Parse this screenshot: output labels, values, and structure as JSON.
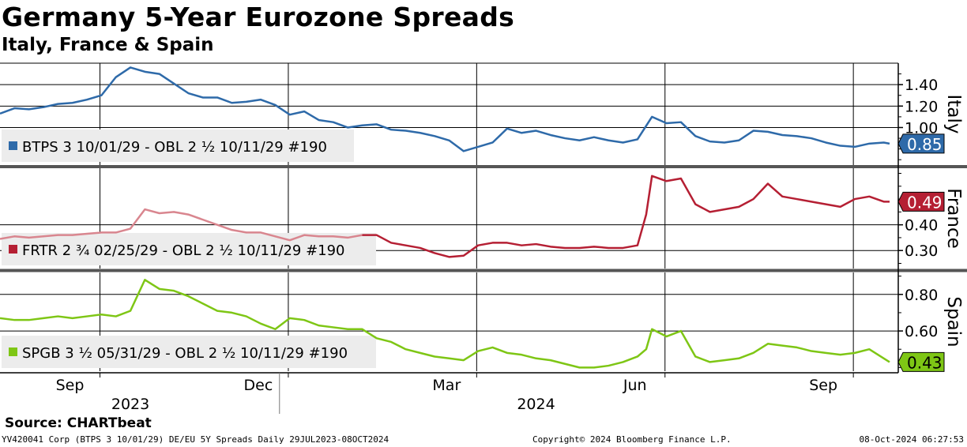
{
  "title": "Germany 5-Year Eurozone Spreads",
  "subtitle": "Italy, France & Spain",
  "source": "Source: CHARTbeat",
  "footer": {
    "left": "YV420041 Corp (BTPS 3 10/01/29) DE/EU 5Y Spreads  Daily 29JUL2023-08OCT2024",
    "center": "Copyright© 2024 Bloomberg Finance L.P.",
    "right": "08-Oct-2024 06:27:53"
  },
  "colors": {
    "italy": "#2e6aa9",
    "france": "#b51f33",
    "france_light": "#d9868f",
    "spain": "#7ec615"
  },
  "chart_data": {
    "type": "line",
    "x_ticks": [
      "Sep",
      "Dec",
      "Mar",
      "Jun",
      "Sep"
    ],
    "x_tick_weeks": [
      6,
      19,
      32,
      45,
      58
    ],
    "year_labels": [
      {
        "label": "2023",
        "week": 9
      },
      {
        "label": "2024",
        "week": 37
      }
    ],
    "year_boundary_week": 20,
    "panels": [
      {
        "name": "Italy",
        "legend": "BTPS 3 10/01/29 - OBL 2 ½ 10/11/29 #190",
        "last_value": "0.85",
        "color_key": "italy",
        "ylim": [
          0.65,
          1.6
        ],
        "yticks": [
          "1.40",
          "1.20",
          "1.00"
        ],
        "ytick_values": [
          1.4,
          1.2,
          1.0
        ],
        "x": [
          0,
          1,
          2,
          3,
          4,
          5,
          6,
          7,
          8,
          9,
          10,
          11,
          12,
          13,
          14,
          15,
          16,
          17,
          18,
          19,
          20,
          21,
          22,
          23,
          24,
          25,
          26,
          27,
          28,
          29,
          30,
          31,
          32,
          33,
          34,
          35,
          36,
          37,
          38,
          39,
          40,
          41,
          42,
          43,
          44,
          45,
          46,
          47,
          48,
          49,
          50,
          51,
          52,
          53,
          54,
          55,
          56,
          57,
          58,
          59,
          60,
          61,
          61.4
        ],
        "values": [
          1.13,
          1.18,
          1.17,
          1.19,
          1.22,
          1.23,
          1.26,
          1.3,
          1.47,
          1.56,
          1.52,
          1.5,
          1.41,
          1.32,
          1.28,
          1.28,
          1.23,
          1.24,
          1.26,
          1.21,
          1.12,
          1.15,
          1.07,
          1.05,
          1.0,
          1.02,
          1.03,
          0.98,
          0.97,
          0.95,
          0.92,
          0.88,
          0.78,
          0.82,
          0.86,
          0.99,
          0.95,
          0.97,
          0.93,
          0.9,
          0.88,
          0.91,
          0.88,
          0.86,
          0.89,
          1.1,
          1.04,
          1.05,
          0.92,
          0.87,
          0.86,
          0.88,
          0.97,
          0.96,
          0.93,
          0.92,
          0.9,
          0.86,
          0.83,
          0.82,
          0.85,
          0.86,
          0.85
        ]
      },
      {
        "name": "France",
        "legend": "FRTR 2 ¾ 02/25/29 - OBL 2 ½ 10/11/29 #190",
        "last_value": "0.49",
        "color_key": "france",
        "ylim": [
          0.23,
          0.62
        ],
        "yticks": [
          "0.40",
          "0.30"
        ],
        "ytick_values": [
          0.4,
          0.3
        ],
        "x": [
          0,
          1,
          2,
          3,
          4,
          5,
          6,
          7,
          8,
          9,
          10,
          11,
          12,
          13,
          14,
          15,
          16,
          17,
          18,
          19,
          20,
          21,
          22,
          23,
          24,
          25,
          26,
          27,
          28,
          29,
          30,
          31,
          32,
          33,
          34,
          35,
          36,
          37,
          38,
          39,
          40,
          41,
          42,
          43,
          44,
          44.6,
          45,
          46,
          47,
          48,
          49,
          50,
          51,
          52,
          53,
          54,
          55,
          56,
          57,
          58,
          59,
          60,
          61,
          61.4
        ],
        "values": [
          0.345,
          0.355,
          0.35,
          0.355,
          0.36,
          0.36,
          0.365,
          0.37,
          0.37,
          0.385,
          0.46,
          0.445,
          0.45,
          0.44,
          0.42,
          0.4,
          0.38,
          0.37,
          0.37,
          0.355,
          0.34,
          0.36,
          0.355,
          0.355,
          0.35,
          0.36,
          0.36,
          0.33,
          0.32,
          0.31,
          0.29,
          0.275,
          0.28,
          0.32,
          0.33,
          0.33,
          0.32,
          0.325,
          0.315,
          0.31,
          0.31,
          0.315,
          0.31,
          0.31,
          0.32,
          0.44,
          0.59,
          0.57,
          0.58,
          0.48,
          0.45,
          0.46,
          0.47,
          0.5,
          0.56,
          0.51,
          0.5,
          0.49,
          0.48,
          0.47,
          0.5,
          0.51,
          0.49,
          0.49
        ],
        "light_until_week": 25
      },
      {
        "name": "Spain",
        "legend": "SPGB 3 ½ 05/31/29 - OBL 2 ½ 10/11/29 #190",
        "last_value": "0.43",
        "color_key": "spain",
        "ylim": [
          0.38,
          0.92
        ],
        "yticks": [
          "0.80",
          "0.60"
        ],
        "ytick_values": [
          0.8,
          0.6
        ],
        "x": [
          0,
          1,
          2,
          3,
          4,
          5,
          6,
          7,
          8,
          9,
          10,
          11,
          12,
          13,
          14,
          15,
          16,
          17,
          18,
          19,
          20,
          21,
          22,
          23,
          24,
          25,
          26,
          27,
          28,
          29,
          30,
          31,
          32,
          33,
          34,
          35,
          36,
          37,
          38,
          39,
          40,
          41,
          42,
          43,
          44,
          44.6,
          45,
          46,
          47,
          48,
          49,
          50,
          51,
          52,
          53,
          54,
          55,
          56,
          57,
          58,
          59,
          60,
          61,
          61.4
        ],
        "values": [
          0.67,
          0.66,
          0.66,
          0.67,
          0.68,
          0.67,
          0.68,
          0.69,
          0.68,
          0.71,
          0.88,
          0.83,
          0.82,
          0.79,
          0.75,
          0.71,
          0.7,
          0.68,
          0.64,
          0.61,
          0.67,
          0.66,
          0.63,
          0.62,
          0.61,
          0.61,
          0.56,
          0.54,
          0.5,
          0.48,
          0.46,
          0.45,
          0.44,
          0.49,
          0.51,
          0.48,
          0.47,
          0.45,
          0.44,
          0.42,
          0.4,
          0.4,
          0.41,
          0.43,
          0.46,
          0.5,
          0.61,
          0.57,
          0.6,
          0.46,
          0.43,
          0.44,
          0.45,
          0.48,
          0.53,
          0.52,
          0.51,
          0.49,
          0.48,
          0.47,
          0.48,
          0.5,
          0.45,
          0.43
        ]
      }
    ]
  }
}
